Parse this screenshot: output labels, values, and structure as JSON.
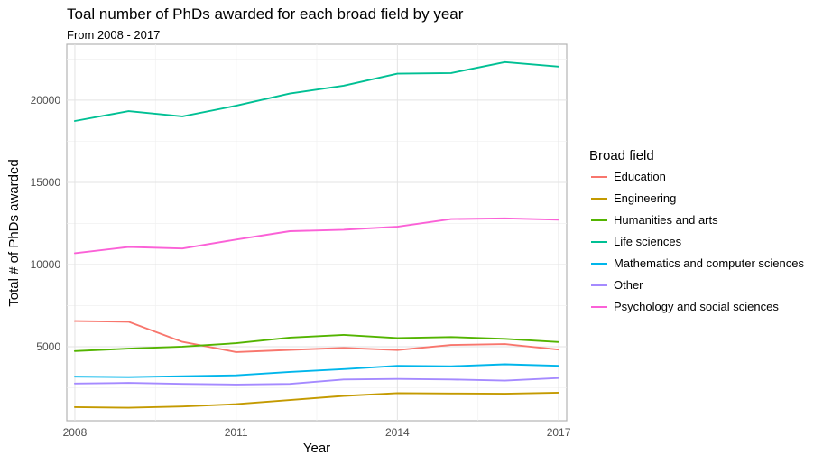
{
  "chart_data": {
    "type": "line",
    "title": "Toal number of PhDs awarded for each broad field by year",
    "subtitle": "From 2008 - 2017",
    "xlabel": "Year",
    "ylabel": "Total # of PhDs awarded",
    "xlim": [
      2007.85,
      2017.15
    ],
    "ylim": [
      500,
      23400
    ],
    "x_ticks": [
      2008,
      2011,
      2014,
      2017
    ],
    "x_minor_ticks": [
      2009.5,
      2012.5,
      2015.5
    ],
    "y_ticks": [
      5000,
      10000,
      15000,
      20000
    ],
    "y_minor_ticks": [
      2500,
      7500,
      12500,
      17500,
      22500
    ],
    "grid": true,
    "legend_title": "Broad field",
    "legend_position": "right",
    "x": [
      2008,
      2009,
      2010,
      2011,
      2012,
      2013,
      2014,
      2015,
      2016,
      2017
    ],
    "series": [
      {
        "name": "Education",
        "color": "#F8766D",
        "values": [
          6560,
          6520,
          5300,
          4680,
          4810,
          4930,
          4800,
          5110,
          5160,
          4830
        ]
      },
      {
        "name": "Engineering",
        "color": "#C49A00",
        "values": [
          1330,
          1290,
          1370,
          1510,
          1760,
          2010,
          2180,
          2160,
          2140,
          2210
        ]
      },
      {
        "name": "Humanities and arts",
        "color": "#53B400",
        "values": [
          4740,
          4890,
          5010,
          5220,
          5560,
          5720,
          5530,
          5590,
          5480,
          5290
        ]
      },
      {
        "name": "Life sciences",
        "color": "#00C094",
        "values": [
          18730,
          19330,
          19010,
          19660,
          20400,
          20880,
          21610,
          21650,
          22310,
          22040
        ]
      },
      {
        "name": "Mathematics and computer sciences",
        "color": "#00B6EB",
        "values": [
          3180,
          3150,
          3210,
          3260,
          3470,
          3640,
          3840,
          3810,
          3930,
          3840
        ]
      },
      {
        "name": "Other",
        "color": "#A58AFF",
        "values": [
          2760,
          2800,
          2740,
          2700,
          2740,
          3010,
          3040,
          3010,
          2940,
          3100
        ]
      },
      {
        "name": "Psychology and social sciences",
        "color": "#FB61D7",
        "values": [
          10690,
          11070,
          10980,
          11520,
          12030,
          12120,
          12300,
          12770,
          12810,
          12730
        ]
      }
    ]
  }
}
